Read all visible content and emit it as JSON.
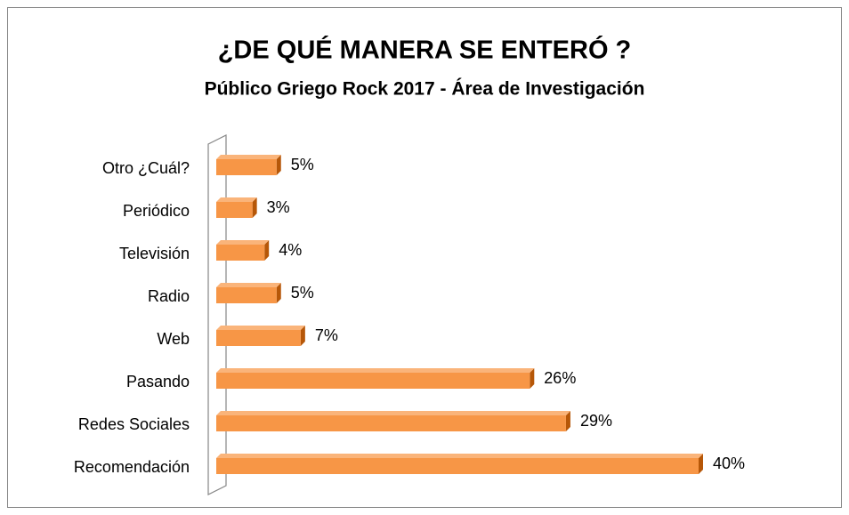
{
  "chart_data": {
    "type": "bar",
    "orientation": "horizontal",
    "title": "¿DE QUÉ MANERA SE ENTERÓ ?",
    "subtitle": "Público Griego Rock 2017 - Área de Investigación",
    "categories": [
      "Otro ¿Cuál?",
      "Periódico",
      "Televisión",
      "Radio",
      "Web",
      "Pasando",
      "Redes Sociales",
      "Recomendación"
    ],
    "values": [
      5,
      3,
      4,
      5,
      7,
      26,
      29,
      40
    ],
    "value_labels": [
      "5%",
      "3%",
      "4%",
      "5%",
      "7%",
      "26%",
      "29%",
      "40%"
    ],
    "color": "#f79646"
  }
}
